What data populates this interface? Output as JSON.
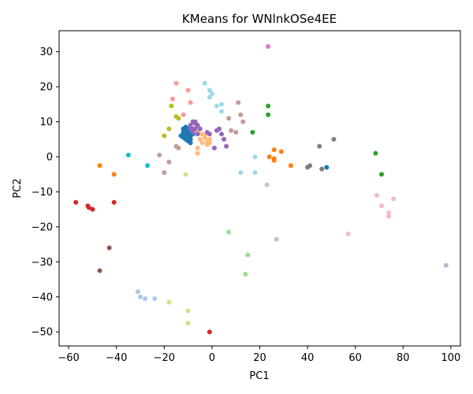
{
  "chart_data": {
    "type": "scatter",
    "title": "KMeans for WNlnkOSe4EE",
    "xlabel": "PC1",
    "ylabel": "PC2",
    "xlim": [
      -64,
      104
    ],
    "ylim": [
      -54,
      36
    ],
    "xticks": [
      -60,
      -40,
      -20,
      0,
      20,
      40,
      60,
      80,
      100
    ],
    "yticks": [
      -50,
      -40,
      -30,
      -20,
      -10,
      0,
      10,
      20,
      30
    ],
    "grid": false,
    "legend": "none",
    "series": [
      {
        "color": "#1f77b4",
        "points": [
          [
            -11,
            8.5
          ],
          [
            -10,
            8
          ],
          [
            -12,
            7
          ],
          [
            -11,
            6.5
          ],
          [
            -9,
            7
          ],
          [
            -10,
            6
          ],
          [
            -12,
            5.5
          ],
          [
            -8,
            6.5
          ],
          [
            -9,
            5
          ],
          [
            -10,
            4.5
          ],
          [
            -9,
            4
          ],
          [
            -11,
            7.5
          ],
          [
            -12,
            8
          ],
          [
            -13,
            6
          ],
          [
            -10,
            7
          ],
          [
            -11,
            5
          ],
          [
            -9,
            6
          ],
          [
            -8,
            7.5
          ],
          [
            -12,
            6.5
          ],
          [
            -10,
            5.5
          ],
          [
            48,
            -3
          ]
        ]
      },
      {
        "color": "#aec7e8",
        "points": [
          [
            -31,
            -38.5
          ],
          [
            -30,
            -40
          ],
          [
            -28,
            -40.5
          ],
          [
            -24,
            -40.5
          ]
        ]
      },
      {
        "color": "#ff7f0e",
        "points": [
          [
            -47,
            -2.5
          ],
          [
            -41,
            -5
          ],
          [
            26,
            2
          ],
          [
            24,
            0
          ],
          [
            26,
            -0.5
          ],
          [
            26,
            -1
          ],
          [
            29,
            1.5
          ],
          [
            33,
            -2.5
          ]
        ]
      },
      {
        "color": "#ffbb78",
        "points": [
          [
            -6,
            7
          ],
          [
            -4,
            6.5
          ],
          [
            -3,
            5.5
          ],
          [
            -2,
            4.5
          ],
          [
            -1,
            5
          ],
          [
            -2,
            3.5
          ],
          [
            -4,
            4
          ],
          [
            -5,
            5
          ],
          [
            -6,
            2.5
          ],
          [
            -6,
            1
          ],
          [
            -3,
            6
          ],
          [
            -1,
            4
          ]
        ]
      },
      {
        "color": "#2ca02c",
        "points": [
          [
            23.5,
            14.5
          ],
          [
            23.5,
            12
          ],
          [
            17,
            7
          ],
          [
            68.5,
            1
          ],
          [
            71,
            -5
          ]
        ]
      },
      {
        "color": "#98df8a",
        "points": [
          [
            7,
            -21.5
          ],
          [
            15,
            -28
          ],
          [
            14,
            -33.5
          ]
        ]
      },
      {
        "color": "#d62728",
        "points": [
          [
            -57,
            -13
          ],
          [
            -52,
            -14
          ],
          [
            -51.5,
            -14.5
          ],
          [
            -50,
            -15
          ],
          [
            -41,
            -13
          ],
          [
            -1,
            -50
          ]
        ]
      },
      {
        "color": "#ff9896",
        "points": [
          [
            -15,
            21
          ],
          [
            -16.5,
            16.5
          ],
          [
            -10,
            19
          ],
          [
            -9,
            15.5
          ],
          [
            -12,
            12
          ]
        ]
      },
      {
        "color": "#9467bd",
        "points": [
          [
            -8,
            10
          ],
          [
            -7,
            10
          ],
          [
            -6,
            9
          ],
          [
            -7,
            8
          ],
          [
            -9,
            8
          ],
          [
            -5,
            8
          ],
          [
            -8,
            7
          ],
          [
            -6,
            6.5
          ],
          [
            -9,
            9
          ],
          [
            -1,
            6.5
          ],
          [
            -2,
            7
          ],
          [
            2,
            7.5
          ],
          [
            3,
            8
          ],
          [
            4,
            6.5
          ],
          [
            5,
            5
          ],
          [
            6,
            3
          ],
          [
            1,
            2.5
          ],
          [
            -7,
            9.5
          ],
          [
            -8,
            8
          ]
        ]
      },
      {
        "color": "#c5b0d5",
        "points": [
          [
            98,
            -31
          ]
        ]
      },
      {
        "color": "#8c564b",
        "points": [
          [
            -43,
            -26
          ],
          [
            -47,
            -32.5
          ]
        ]
      },
      {
        "color": "#c49c94",
        "points": [
          [
            -22,
            0.5
          ],
          [
            -20,
            -4.5
          ],
          [
            -18,
            -1.5
          ],
          [
            -15,
            3
          ],
          [
            -14,
            2.5
          ],
          [
            7,
            11
          ],
          [
            8,
            7.5
          ],
          [
            10,
            7
          ],
          [
            11,
            15.5
          ],
          [
            12,
            12
          ],
          [
            13,
            10
          ]
        ]
      },
      {
        "color": "#e377c2",
        "points": [
          [
            23.5,
            31.5
          ]
        ]
      },
      {
        "color": "#f7b6d2",
        "points": [
          [
            69,
            -11
          ],
          [
            71,
            -14
          ],
          [
            74,
            -16
          ],
          [
            74,
            -17
          ],
          [
            76,
            -12
          ],
          [
            57,
            -22
          ]
        ]
      },
      {
        "color": "#7f7f7f",
        "points": [
          [
            45,
            3
          ],
          [
            51,
            5
          ],
          [
            40,
            -3
          ],
          [
            41,
            -2.5
          ],
          [
            46,
            -3.5
          ]
        ]
      },
      {
        "color": "#c7c7c7",
        "points": [
          [
            23,
            -8
          ],
          [
            27,
            -23.5
          ]
        ]
      },
      {
        "color": "#bcbd22",
        "points": [
          [
            -17,
            14.5
          ],
          [
            -15,
            11.5
          ],
          [
            -14,
            11
          ],
          [
            -18,
            8
          ],
          [
            -20,
            6
          ]
        ]
      },
      {
        "color": "#dbdb8d",
        "points": [
          [
            -11,
            -5
          ],
          [
            -18,
            -41.5
          ],
          [
            -10,
            -44
          ],
          [
            -10,
            -47.5
          ]
        ]
      },
      {
        "color": "#17becf",
        "points": [
          [
            -35,
            0.5
          ],
          [
            -27,
            -2.5
          ]
        ]
      },
      {
        "color": "#9edae5",
        "points": [
          [
            -3,
            21
          ],
          [
            -1,
            19
          ],
          [
            0,
            18
          ],
          [
            -1,
            17
          ],
          [
            2,
            14.5
          ],
          [
            4,
            15
          ],
          [
            4,
            13
          ],
          [
            12,
            -4.5
          ],
          [
            18,
            0
          ],
          [
            18,
            -4.5
          ]
        ]
      }
    ]
  }
}
